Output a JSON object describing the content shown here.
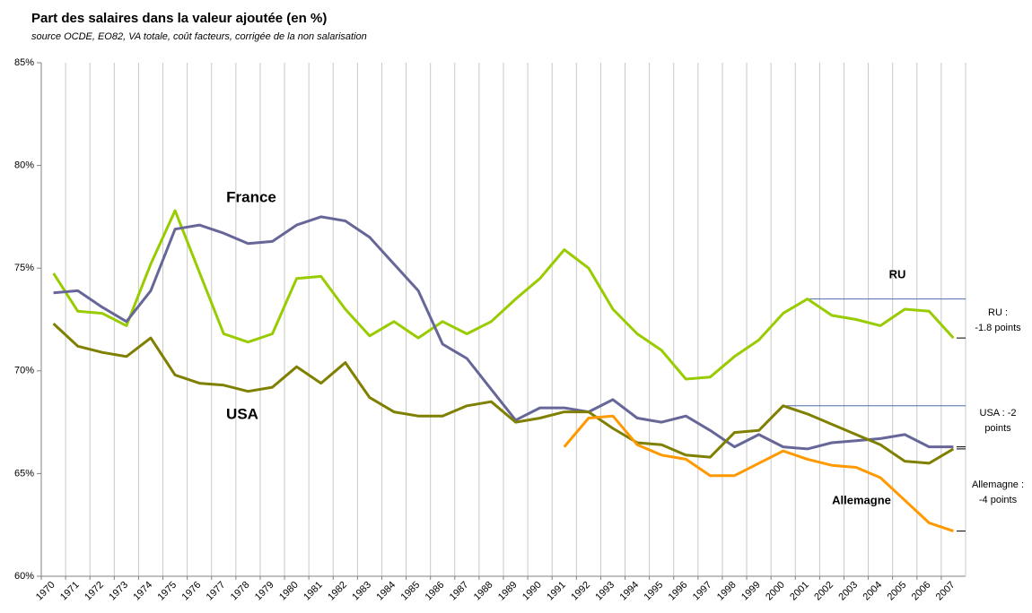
{
  "chart_data": {
    "type": "line",
    "title": "Part des salaires dans la valeur ajoutée (en %)",
    "subtitle": "source OCDE, EO82, VA totale, coût  facteurs, corrigée de la non salarisation",
    "categories": [
      "1970",
      "1971",
      "1972",
      "1973",
      "1974",
      "1975",
      "1976",
      "1977",
      "1978",
      "1979",
      "1980",
      "1981",
      "1982",
      "1983",
      "1984",
      "1985",
      "1986",
      "1987",
      "1988",
      "1989",
      "1990",
      "1991",
      "1992",
      "1993",
      "1994",
      "1995",
      "1996",
      "1997",
      "1998",
      "1999",
      "2000",
      "2001",
      "2002",
      "2003",
      "2004",
      "2005",
      "2006",
      "2007"
    ],
    "series": [
      {
        "name": "RU",
        "color": "#99cc00",
        "values": [
          74.75,
          72.9,
          72.8,
          72.2,
          75.2,
          77.8,
          74.8,
          71.8,
          71.4,
          71.8,
          74.5,
          74.6,
          73.0,
          71.7,
          72.4,
          71.6,
          72.4,
          71.8,
          72.4,
          73.5,
          74.5,
          75.9,
          75.0,
          73.0,
          71.8,
          71.0,
          69.6,
          69.7,
          70.7,
          71.5,
          72.8,
          73.5,
          72.7,
          72.5,
          72.2,
          73.0,
          72.9,
          71.6
        ]
      },
      {
        "name": "France",
        "color": "#666699",
        "values": [
          73.8,
          73.9,
          73.1,
          72.4,
          73.9,
          76.9,
          77.1,
          76.7,
          76.2,
          76.3,
          77.1,
          77.5,
          77.3,
          76.5,
          75.2,
          73.9,
          71.3,
          70.6,
          69.1,
          67.6,
          68.2,
          68.2,
          68.0,
          68.6,
          67.7,
          67.5,
          67.8,
          67.1,
          66.3,
          66.9,
          66.3,
          66.2,
          66.5,
          66.6,
          66.7,
          66.9,
          66.3,
          66.3
        ]
      },
      {
        "name": "USA",
        "color": "#808000",
        "values": [
          72.3,
          71.2,
          70.9,
          70.7,
          71.6,
          69.8,
          69.4,
          69.3,
          69.0,
          69.2,
          70.2,
          69.4,
          70.4,
          68.7,
          68.0,
          67.8,
          67.8,
          68.3,
          68.5,
          67.5,
          67.7,
          68.0,
          68.0,
          67.2,
          66.5,
          66.4,
          65.9,
          65.8,
          67.0,
          67.1,
          68.3,
          67.9,
          67.4,
          66.9,
          66.4,
          65.6,
          65.5,
          66.2
        ]
      },
      {
        "name": "Allemagne",
        "color": "#ff9900",
        "values": [
          null,
          null,
          null,
          null,
          null,
          null,
          null,
          null,
          null,
          null,
          null,
          null,
          null,
          null,
          null,
          null,
          null,
          null,
          null,
          null,
          null,
          66.3,
          67.7,
          67.8,
          66.4,
          65.9,
          65.7,
          64.9,
          64.9,
          65.5,
          66.1,
          65.7,
          65.4,
          65.3,
          64.8,
          63.7,
          62.6,
          62.2
        ]
      }
    ],
    "annotations": [
      [
        "RU :",
        "-1.8 points"
      ],
      [
        "USA : -2",
        "points"
      ],
      [
        "Allemagne :",
        "-4 points"
      ]
    ],
    "ylim": [
      60,
      85
    ],
    "yticks": [
      {
        "value": 60,
        "label": "60%"
      },
      {
        "value": 65,
        "label": "65%"
      },
      {
        "value": 70,
        "label": "70%"
      },
      {
        "value": 75,
        "label": "75%"
      },
      {
        "value": 80,
        "label": "80%"
      },
      {
        "value": 85,
        "label": "85%"
      }
    ]
  }
}
